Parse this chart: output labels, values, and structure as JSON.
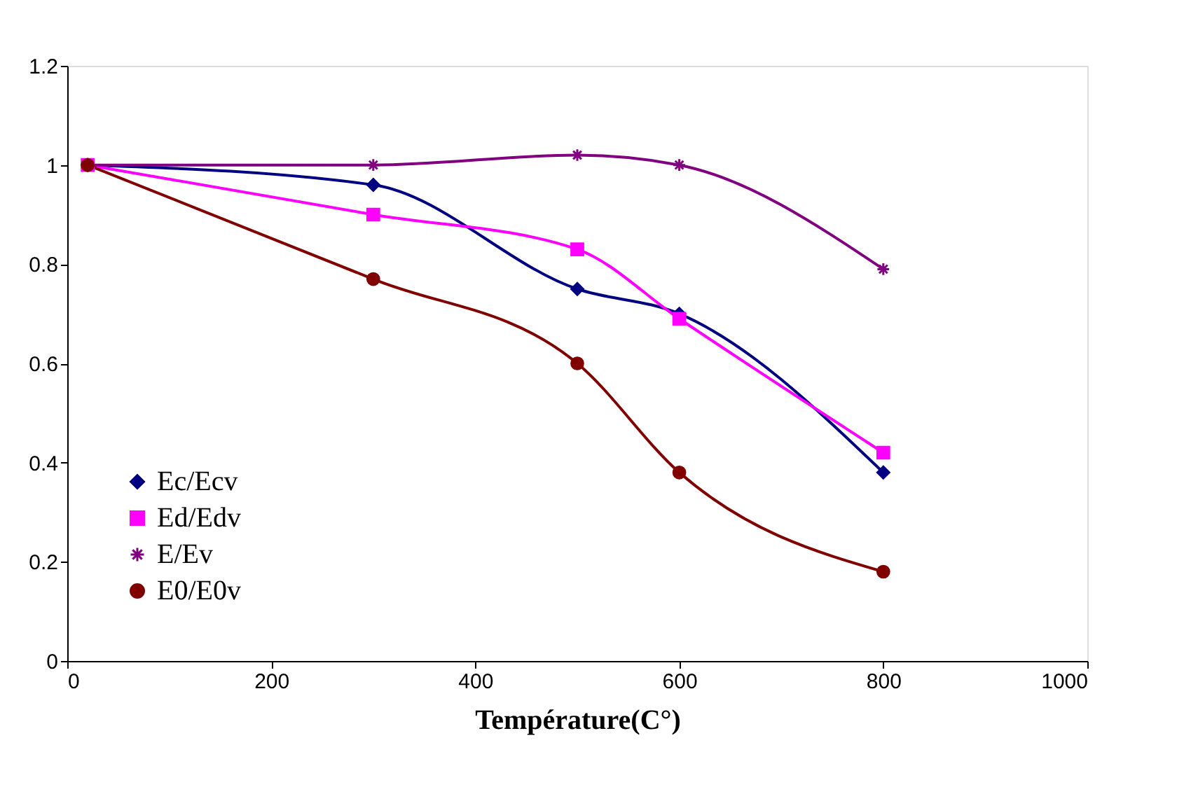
{
  "chart_data": {
    "type": "line",
    "xlabel": "Température(C°)",
    "x": [
      20,
      300,
      500,
      600,
      800
    ],
    "series": [
      {
        "name": "Ec/Ecv",
        "color": "#000080",
        "marker": "diamond",
        "values": [
          1.0,
          0.96,
          0.75,
          0.7,
          0.38
        ]
      },
      {
        "name": "Ed/Edv",
        "color": "#ff00ff",
        "marker": "square",
        "values": [
          1.0,
          0.9,
          0.83,
          0.69,
          0.42
        ]
      },
      {
        "name": "E/Ev",
        "color": "#800080",
        "marker": "cross",
        "values": [
          1.0,
          1.0,
          1.02,
          1.0,
          0.79
        ]
      },
      {
        "name": "E0/E0v",
        "color": "#800000",
        "marker": "circle",
        "values": [
          1.0,
          0.77,
          0.6,
          0.38,
          0.18
        ]
      }
    ],
    "xlim": [
      0,
      1000
    ],
    "xticks": [
      0,
      200,
      400,
      600,
      800,
      1000
    ],
    "ylim": [
      0,
      1.2
    ],
    "yticks": [
      0,
      0.2,
      0.4,
      0.6,
      0.8,
      1,
      1.2
    ],
    "grid": false,
    "legend": "bottom left",
    "line_style": "solid"
  }
}
